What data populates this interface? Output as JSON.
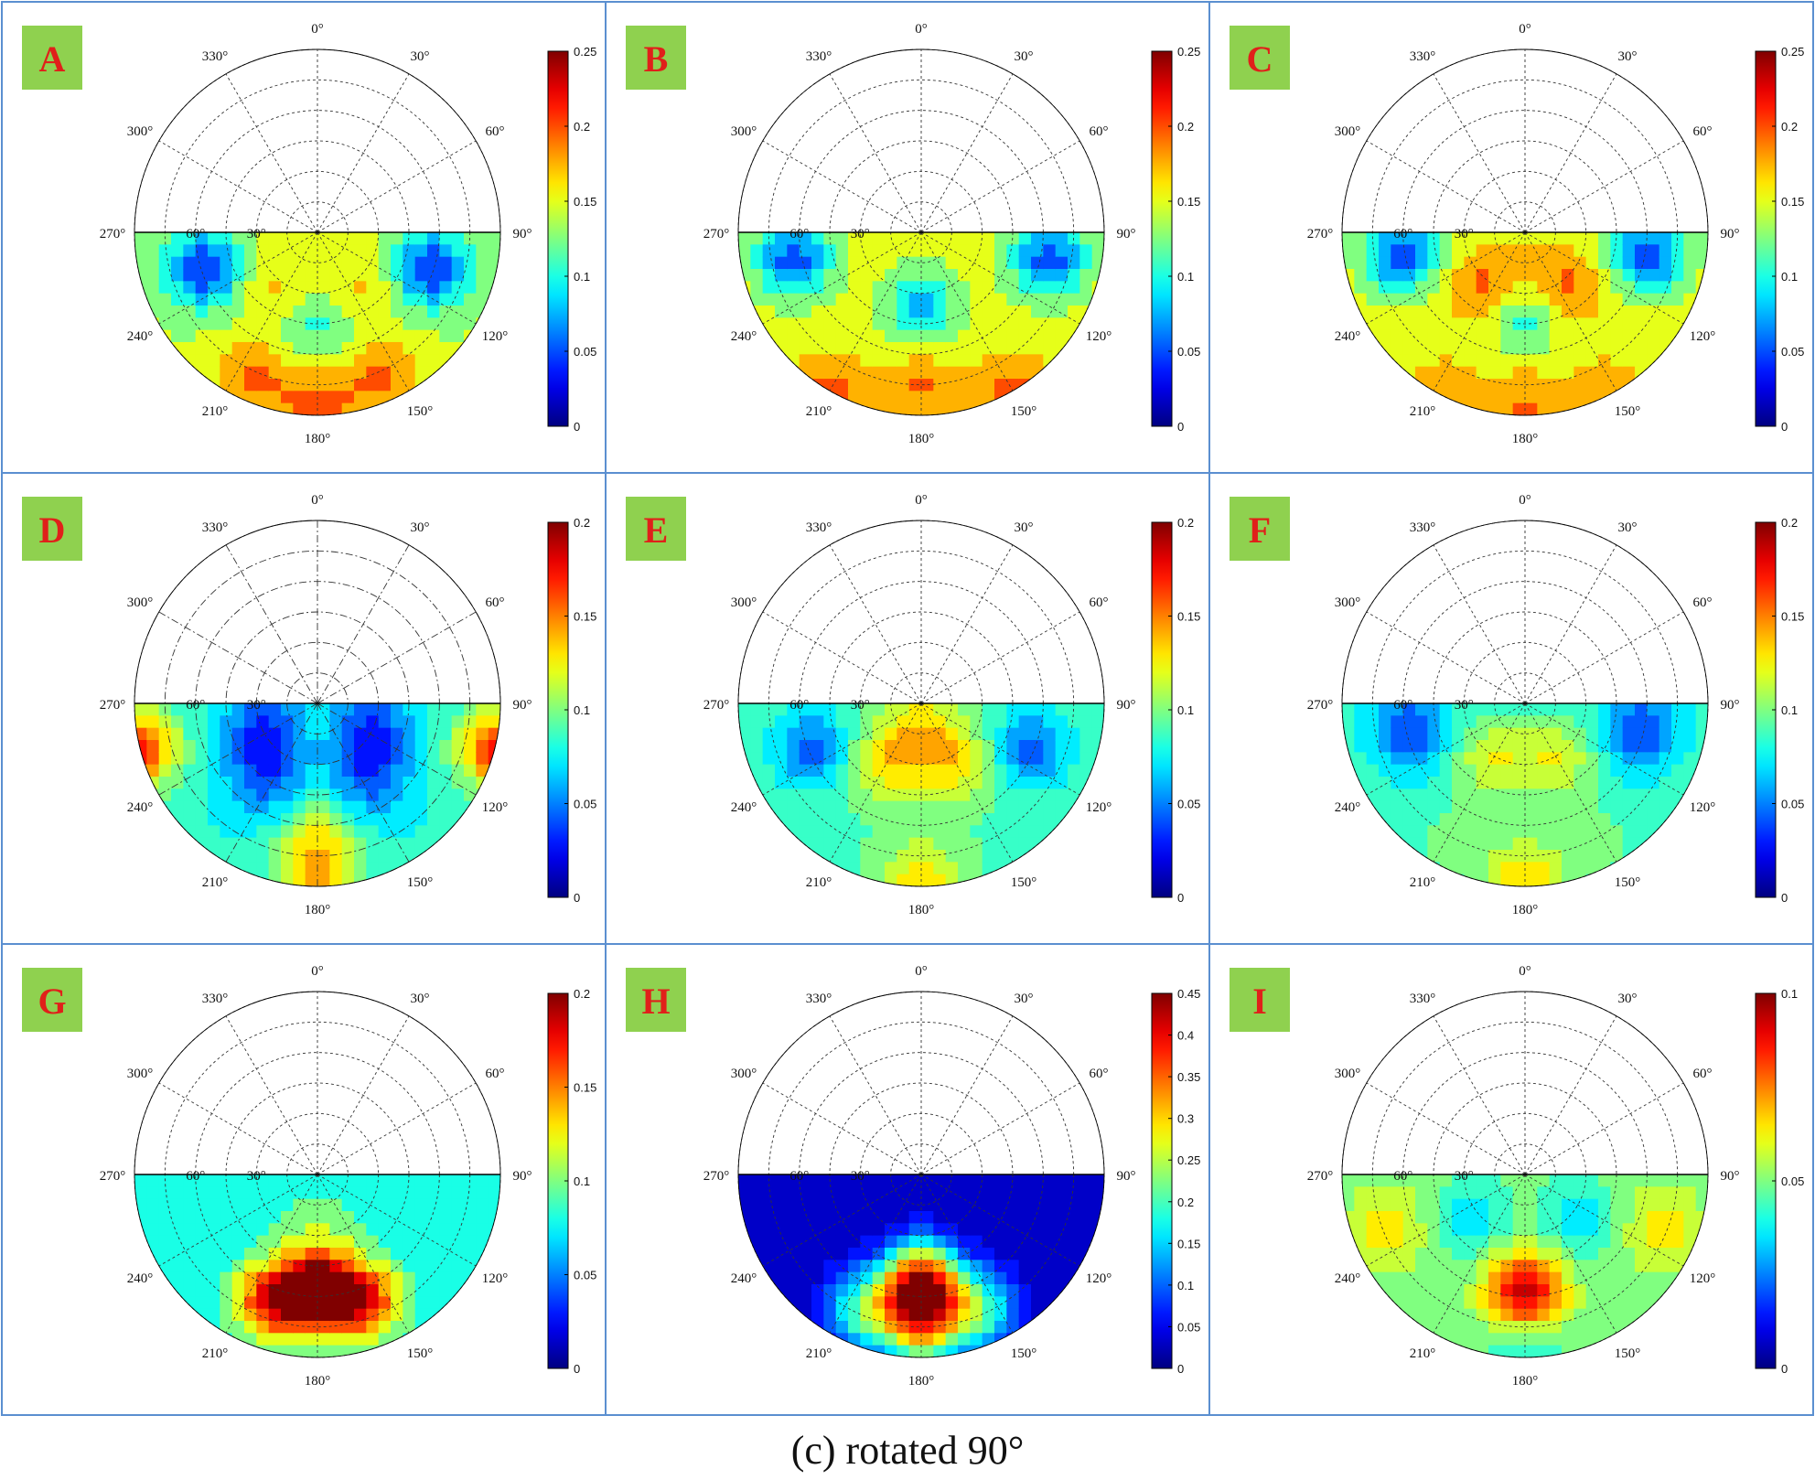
{
  "figure": {
    "caption": "(c) rotated 90°",
    "border_color": "#5b8fd0",
    "badge_color": "#8fd14f",
    "badge_text_color": "#e0201a"
  },
  "polar_axes": {
    "angle_labels": [
      "0°",
      "30°",
      "60°",
      "90°",
      "120°",
      "150°",
      "180°",
      "210°",
      "240°",
      "270°",
      "300°",
      "330°"
    ],
    "radial_labels": [
      "30°",
      "60°"
    ],
    "radial_rings": 6,
    "radial_max": 90
  },
  "colormap": "jet",
  "chart_data": [
    {
      "panel": "A",
      "type": "heatmap",
      "colorbar_ticks": [
        "0",
        "0.05",
        "0.1",
        "0.15",
        "0.2",
        "0.25"
      ],
      "colorbar_range": [
        0,
        0.25
      ],
      "contour_lines": false,
      "description_values": {
        "base": 0.14,
        "blobs": [
          {
            "x": -0.62,
            "y": 0.2,
            "v": 0.04
          },
          {
            "x": 0.62,
            "y": 0.2,
            "v": 0.04
          },
          {
            "x": 0,
            "y": 0.5,
            "v": 0.1
          },
          {
            "x": -0.22,
            "y": 0.3,
            "v": 0.17
          },
          {
            "x": 0.22,
            "y": 0.3,
            "v": 0.17
          },
          {
            "x": -0.35,
            "y": 0.8,
            "v": 0.19
          },
          {
            "x": 0.35,
            "y": 0.8,
            "v": 0.19
          },
          {
            "x": 0,
            "y": 0.95,
            "v": 0.2
          }
        ]
      }
    },
    {
      "panel": "B",
      "type": "heatmap",
      "colorbar_ticks": [
        "0",
        "0.05",
        "0.1",
        "0.15",
        "0.2",
        "0.25"
      ],
      "colorbar_range": [
        0,
        0.25
      ],
      "contour_lines": false,
      "description_values": {
        "base": 0.15,
        "blobs": [
          {
            "x": -0.7,
            "y": 0.15,
            "v": 0.05
          },
          {
            "x": 0.7,
            "y": 0.15,
            "v": 0.05
          },
          {
            "x": 0,
            "y": 0.4,
            "v": 0.08
          },
          {
            "x": 0,
            "y": 0.85,
            "v": 0.19
          },
          {
            "x": -0.5,
            "y": 0.9,
            "v": 0.2
          },
          {
            "x": 0.5,
            "y": 0.9,
            "v": 0.2
          }
        ]
      }
    },
    {
      "panel": "C",
      "type": "heatmap",
      "colorbar_ticks": [
        "0",
        "0.05",
        "0.1",
        "0.15",
        "0.2",
        "0.25"
      ],
      "colorbar_range": [
        0,
        0.25
      ],
      "contour_lines": false,
      "description_values": {
        "base": 0.15,
        "blobs": [
          {
            "x": -0.68,
            "y": 0.12,
            "v": 0.05
          },
          {
            "x": 0.68,
            "y": 0.12,
            "v": 0.05
          },
          {
            "x": 0,
            "y": 0.45,
            "v": 0.09
          },
          {
            "x": -0.2,
            "y": 0.3,
            "v": 0.2
          },
          {
            "x": 0.2,
            "y": 0.3,
            "v": 0.2
          },
          {
            "x": 0,
            "y": 0.95,
            "v": 0.19
          },
          {
            "x": -0.45,
            "y": 0.9,
            "v": 0.18
          },
          {
            "x": 0.45,
            "y": 0.9,
            "v": 0.18
          }
        ]
      }
    },
    {
      "panel": "D",
      "type": "heatmap",
      "colorbar_ticks": [
        "0",
        "0.05",
        "0.1",
        "0.15",
        "0.2"
      ],
      "colorbar_range": [
        0,
        0.2
      ],
      "contour_lines": true,
      "description_values": {
        "base": 0.08,
        "blobs": [
          {
            "x": -0.3,
            "y": 0.12,
            "v": 0.04
          },
          {
            "x": 0.3,
            "y": 0.12,
            "v": 0.04
          },
          {
            "x": -0.28,
            "y": 0.4,
            "v": 0.04
          },
          {
            "x": 0.28,
            "y": 0.4,
            "v": 0.04
          },
          {
            "x": -0.98,
            "y": 0.25,
            "v": 0.17
          },
          {
            "x": 0.98,
            "y": 0.25,
            "v": 0.17
          },
          {
            "x": 0,
            "y": 0.95,
            "v": 0.14
          },
          {
            "x": 0,
            "y": 0.7,
            "v": 0.11
          }
        ]
      }
    },
    {
      "panel": "E",
      "type": "heatmap",
      "colorbar_ticks": [
        "0",
        "0.05",
        "0.1",
        "0.15",
        "0.2"
      ],
      "colorbar_range": [
        0,
        0.2
      ],
      "contour_lines": true,
      "description_values": {
        "base": 0.09,
        "blobs": [
          {
            "x": -0.6,
            "y": 0.25,
            "v": 0.045
          },
          {
            "x": 0.6,
            "y": 0.25,
            "v": 0.045
          },
          {
            "x": -0.18,
            "y": 0.32,
            "v": 0.13
          },
          {
            "x": 0.18,
            "y": 0.32,
            "v": 0.13
          },
          {
            "x": 0,
            "y": 0.95,
            "v": 0.13
          },
          {
            "x": 0,
            "y": 0.1,
            "v": 0.12
          }
        ]
      }
    },
    {
      "panel": "F",
      "type": "heatmap",
      "colorbar_ticks": [
        "0",
        "0.05",
        "0.1",
        "0.15",
        "0.2"
      ],
      "colorbar_range": [
        0,
        0.2
      ],
      "contour_lines": true,
      "description_values": {
        "base": 0.085,
        "blobs": [
          {
            "x": -0.62,
            "y": 0.15,
            "v": 0.035
          },
          {
            "x": 0.62,
            "y": 0.15,
            "v": 0.035
          },
          {
            "x": -0.18,
            "y": 0.3,
            "v": 0.12
          },
          {
            "x": 0.18,
            "y": 0.3,
            "v": 0.12
          },
          {
            "x": 0,
            "y": 0.95,
            "v": 0.13
          },
          {
            "x": -0.35,
            "y": 0.75,
            "v": 0.1
          },
          {
            "x": 0.35,
            "y": 0.75,
            "v": 0.1
          }
        ]
      }
    },
    {
      "panel": "G",
      "type": "heatmap",
      "colorbar_ticks": [
        "0",
        "0.05",
        "0.1",
        "0.15",
        "0.2"
      ],
      "colorbar_range": [
        0,
        0.2
      ],
      "contour_lines": false,
      "description_values": {
        "base": 0.08,
        "blobs": [
          {
            "x": 0,
            "y": 0.62,
            "v": 0.2
          },
          {
            "x": -0.25,
            "y": 0.7,
            "v": 0.17
          },
          {
            "x": 0.25,
            "y": 0.7,
            "v": 0.17
          },
          {
            "x": 0,
            "y": 0.3,
            "v": 0.1
          }
        ]
      }
    },
    {
      "panel": "H",
      "type": "heatmap",
      "colorbar_ticks": [
        "0",
        "0.05",
        "0.1",
        "0.15",
        "0.2",
        "0.25",
        "0.3",
        "0.35",
        "0.4",
        "0.45"
      ],
      "colorbar_range": [
        0,
        0.45
      ],
      "contour_lines": true,
      "description_values": {
        "base": 0.03,
        "blobs": [
          {
            "x": 0,
            "y": 0.6,
            "v": 0.42
          },
          {
            "x": -0.3,
            "y": 0.75,
            "v": 0.2
          },
          {
            "x": 0.3,
            "y": 0.75,
            "v": 0.2
          },
          {
            "x": 0,
            "y": 0.85,
            "v": 0.25
          }
        ]
      }
    },
    {
      "panel": "I",
      "type": "heatmap",
      "colorbar_ticks": [
        "0",
        "0.05",
        "0.1"
      ],
      "colorbar_range": [
        0,
        0.1
      ],
      "contour_lines": true,
      "description_values": {
        "base": 0.05,
        "blobs": [
          {
            "x": 0,
            "y": 0.65,
            "v": 0.095
          },
          {
            "x": -0.3,
            "y": 0.25,
            "v": 0.035
          },
          {
            "x": 0.3,
            "y": 0.25,
            "v": 0.035
          },
          {
            "x": 0,
            "y": 0.95,
            "v": 0.035
          },
          {
            "x": -0.75,
            "y": 0.3,
            "v": 0.065
          },
          {
            "x": 0.75,
            "y": 0.3,
            "v": 0.065
          }
        ]
      }
    }
  ]
}
